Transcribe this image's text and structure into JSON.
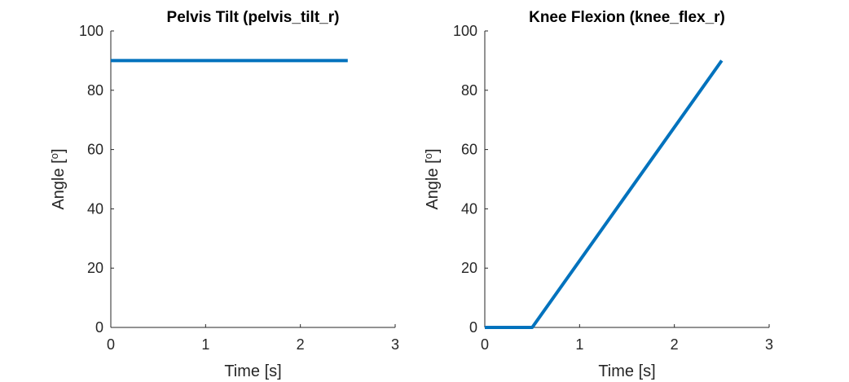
{
  "chart_data": [
    {
      "type": "line",
      "title": "Pelvis Tilt (pelvis_tilt_r)",
      "xlabel": "Time [s]",
      "ylabel_main": "Angle [",
      "ylabel_sup": "o",
      "ylabel_end": "]",
      "xlim": [
        0,
        3
      ],
      "ylim": [
        0,
        100
      ],
      "xticks": [
        0,
        1,
        2,
        3
      ],
      "yticks": [
        0,
        20,
        40,
        60,
        80,
        100
      ],
      "xtick_labels": [
        "0",
        "1",
        "2",
        "3"
      ],
      "ytick_labels": [
        "0",
        "20",
        "40",
        "60",
        "80",
        "100"
      ],
      "grid": false,
      "series": [
        {
          "color": "#0072BD",
          "x": [
            0,
            2.5
          ],
          "y": [
            90,
            90
          ]
        }
      ]
    },
    {
      "type": "line",
      "title": "Knee Flexion (knee_flex_r)",
      "xlabel": "Time [s]",
      "ylabel_main": "Angle [",
      "ylabel_sup": "o",
      "ylabel_end": "]",
      "xlim": [
        0,
        3
      ],
      "ylim": [
        0,
        100
      ],
      "xticks": [
        0,
        1,
        2,
        3
      ],
      "yticks": [
        0,
        20,
        40,
        60,
        80,
        100
      ],
      "xtick_labels": [
        "0",
        "1",
        "2",
        "3"
      ],
      "ytick_labels": [
        "0",
        "20",
        "40",
        "60",
        "80",
        "100"
      ],
      "grid": false,
      "series": [
        {
          "color": "#0072BD",
          "x": [
            0,
            0.5,
            2.5
          ],
          "y": [
            0,
            0,
            90
          ]
        }
      ]
    }
  ]
}
